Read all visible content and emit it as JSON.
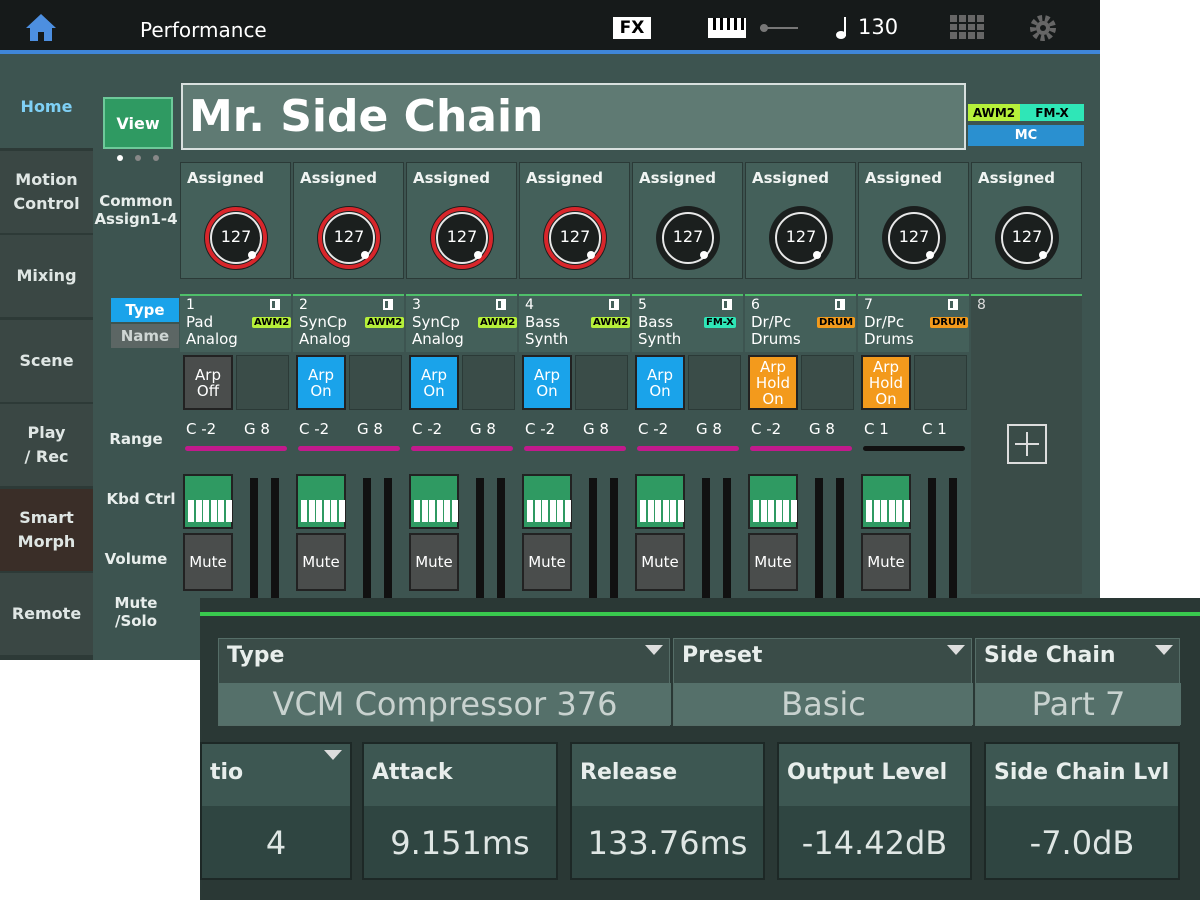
{
  "header": {
    "title": "Performance",
    "fx": "FX",
    "tempo": "130"
  },
  "sidebar": [
    "Home",
    "Motion\nControl",
    "Mixing",
    "Scene",
    "Play\n/ Rec",
    "Smart\nMorph",
    "Remote"
  ],
  "view_button": "View",
  "performance_name": "Mr. Side Chain",
  "badges": [
    "AWM2",
    "FM-X",
    "MC"
  ],
  "row_labels": {
    "common": "Common\nAssign1-4",
    "type": "Type",
    "name": "Name",
    "range": "Range",
    "kbd": "Kbd Ctrl",
    "volume": "Volume",
    "mute": "Mute\n/Solo"
  },
  "knobs": [
    {
      "label": "Assigned",
      "value": "127",
      "color": "#d8262b"
    },
    {
      "label": "Assigned",
      "value": "127",
      "color": "#d8262b"
    },
    {
      "label": "Assigned",
      "value": "127",
      "color": "#d8262b"
    },
    {
      "label": "Assigned",
      "value": "127",
      "color": "#d8262b"
    },
    {
      "label": "Assigned",
      "value": "127",
      "color": "#1b1f1e"
    },
    {
      "label": "Assigned",
      "value": "127",
      "color": "#1b1f1e"
    },
    {
      "label": "Assigned",
      "value": "127",
      "color": "#1b1f1e"
    },
    {
      "label": "Assigned",
      "value": "127",
      "color": "#1b1f1e"
    }
  ],
  "parts": [
    {
      "number": "1",
      "line1": "Pad",
      "line2": "Analog",
      "engine": "AWM2",
      "arp": "Arp\nOff",
      "arp_color": "#4a4d4c",
      "range_low": "C -2",
      "range_high": "G 8",
      "mute": "Mute"
    },
    {
      "number": "2",
      "line1": "SynCp",
      "line2": "Analog",
      "engine": "AWM2",
      "arp": "Arp\nOn",
      "arp_color": "#1aa3ea",
      "range_low": "C -2",
      "range_high": "G 8",
      "mute": "Mute"
    },
    {
      "number": "3",
      "line1": "SynCp",
      "line2": "Analog",
      "engine": "AWM2",
      "arp": "Arp\nOn",
      "arp_color": "#1aa3ea",
      "range_low": "C -2",
      "range_high": "G 8",
      "mute": "Mute"
    },
    {
      "number": "4",
      "line1": "Bass",
      "line2": "Synth",
      "engine": "AWM2",
      "arp": "Arp\nOn",
      "arp_color": "#1aa3ea",
      "range_low": "C -2",
      "range_high": "G 8",
      "mute": "Mute"
    },
    {
      "number": "5",
      "line1": "Bass",
      "line2": "Synth",
      "engine": "FM-X",
      "arp": "Arp\nOn",
      "arp_color": "#1aa3ea",
      "range_low": "C -2",
      "range_high": "G 8",
      "mute": "Mute"
    },
    {
      "number": "6",
      "line1": "Dr/Pc",
      "line2": "Drums",
      "engine": "DRUM",
      "arp": "Arp\nHold\nOn",
      "arp_color": "#f39a1c",
      "range_low": "C -2",
      "range_high": "G 8",
      "mute": "Mute"
    },
    {
      "number": "7",
      "line1": "Dr/Pc",
      "line2": "Drums",
      "engine": "DRUM",
      "arp": "Arp\nHold\nOn",
      "arp_color": "#f39a1c",
      "range_low": "C 1",
      "range_high": "C 1",
      "mute": "Mute"
    }
  ],
  "empty_part": {
    "number": "8"
  },
  "effect": {
    "selectors": [
      {
        "label": "Type",
        "value": "VCM Compressor 376"
      },
      {
        "label": "Preset",
        "value": "Basic"
      },
      {
        "label": "Side Chain",
        "value": "Part 7"
      }
    ],
    "params": [
      {
        "label": "tio",
        "value": "4"
      },
      {
        "label": "Attack",
        "value": "9.151ms"
      },
      {
        "label": "Release",
        "value": "133.76ms"
      },
      {
        "label": "Output Level",
        "value": "-14.42dB"
      },
      {
        "label": "Side Chain Lvl",
        "value": "-7.0dB"
      }
    ]
  }
}
